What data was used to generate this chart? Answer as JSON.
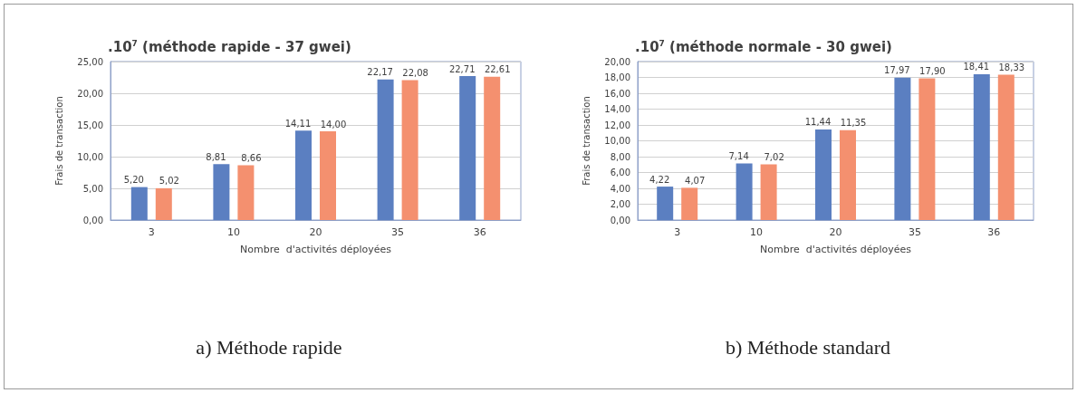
{
  "chart_data": [
    {
      "type": "bar",
      "title": ".10$^{7}$ (méthode rapide - 37 gwei)",
      "xlabel": "Nombre  d'activités déployées",
      "ylabel": "Frais de transaction",
      "categories": [
        "3",
        "10",
        "20",
        "35",
        "36"
      ],
      "series": [
        {
          "color": "#5b7fc1",
          "values": [
            5.2,
            8.81,
            14.11,
            22.17,
            22.71
          ],
          "value_labels": [
            "5,20",
            "8,81",
            "14,11",
            "22,17",
            "22,71"
          ]
        },
        {
          "color": "#f4906f",
          "values": [
            5.02,
            8.66,
            14.0,
            22.08,
            22.61
          ],
          "value_labels": [
            "5,02",
            "8,66",
            "14,00",
            "22,08",
            "22,61"
          ]
        }
      ],
      "ylim": [
        0,
        25
      ],
      "yticks": [
        {
          "value": 0,
          "label": "0,00"
        },
        {
          "value": 5,
          "label": "5,00"
        },
        {
          "value": 10,
          "label": "10,00"
        },
        {
          "value": 15,
          "label": "15,00"
        },
        {
          "value": 20,
          "label": "20,00"
        },
        {
          "value": 25,
          "label": "25,00"
        }
      ],
      "grid": true,
      "annotations": [
        "a) Méthode rapide"
      ]
    },
    {
      "type": "bar",
      "title": ".10$^{7}$ (méthode normale - 30 gwei)",
      "xlabel": "Nombre  d'activités déployées",
      "ylabel": "Frais de transaction",
      "categories": [
        "3",
        "10",
        "20",
        "35",
        "36"
      ],
      "series": [
        {
          "color": "#5b7fc1",
          "values": [
            4.22,
            7.14,
            11.44,
            17.97,
            18.41
          ],
          "value_labels": [
            "4,22",
            "7,14",
            "11,44",
            "17,97",
            "18,41"
          ]
        },
        {
          "color": "#f4906f",
          "values": [
            4.07,
            7.02,
            11.35,
            17.9,
            18.33
          ],
          "value_labels": [
            "4,07",
            "7,02",
            "11,35",
            "17,90",
            "18,33"
          ]
        }
      ],
      "ylim": [
        0,
        20
      ],
      "yticks": [
        {
          "value": 0,
          "label": "0,00"
        },
        {
          "value": 2,
          "label": "2,00"
        },
        {
          "value": 4,
          "label": "4,00"
        },
        {
          "value": 6,
          "label": "6,00"
        },
        {
          "value": 8,
          "label": "8,00"
        },
        {
          "value": 10,
          "label": "10,00"
        },
        {
          "value": 12,
          "label": "12,00"
        },
        {
          "value": 14,
          "label": "14,00"
        },
        {
          "value": 16,
          "label": "16,00"
        },
        {
          "value": 18,
          "label": "18,00"
        },
        {
          "value": 20,
          "label": "20,00"
        }
      ],
      "grid": true,
      "annotations": [
        "b) Méthode standard"
      ]
    }
  ]
}
